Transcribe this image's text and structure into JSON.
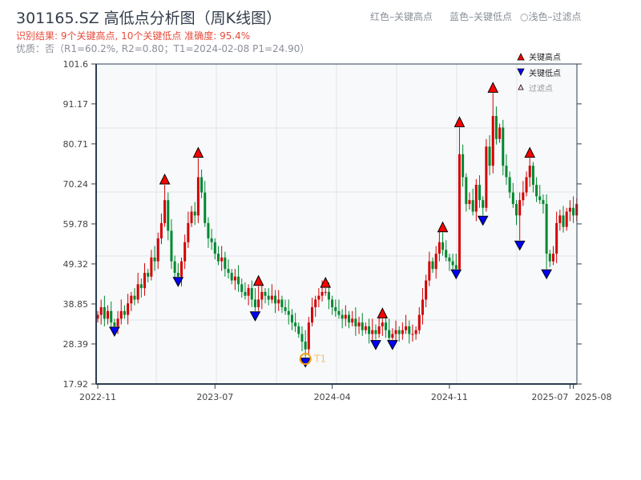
{
  "header": {
    "title": "301165.SZ 高低点分析图（周K线图）",
    "result": "识别结果: 9个关键高点, 10个关键低点  准确度: 95.4%",
    "quality": "优质：否（R1=60.2%, R2=0.80；T1=2024-02-08 P1=24.90）",
    "legend_red": "红色–关键高点",
    "legend_blue": "蓝色–关键低点",
    "legend_filtered": "○浅色–过滤点"
  },
  "colors": {
    "up": "#d40000",
    "down": "#00882f",
    "high_marker": "#ff0000",
    "low_marker": "#0000ff",
    "t1": "#f39c12",
    "axis": "#2c3e50",
    "grid": "#e1e4ea",
    "bg": "#f7f9fb"
  },
  "chart_data": {
    "type": "candlestick",
    "title": "301165.SZ 高低点分析图（周K线图）",
    "ylim": [
      17.92,
      101.6
    ],
    "yticks": [
      "17.92",
      "28.39",
      "38.85",
      "49.32",
      "59.78",
      "70.24",
      "80.71",
      "91.17",
      "101.6"
    ],
    "xticks": [
      {
        "label": "2022-11",
        "index": 0
      },
      {
        "label": "2023-07",
        "index": 35
      },
      {
        "label": "2024-04",
        "index": 70
      },
      {
        "label": "2024-11",
        "index": 105
      },
      {
        "label": "2025-07",
        "index": 141
      },
      {
        "label": "2025-08",
        "index": 142
      }
    ],
    "first_open": 35,
    "closes": [
      36,
      38,
      35,
      37,
      34,
      33,
      35,
      37,
      36,
      39,
      41,
      40,
      44,
      43,
      47,
      46,
      51,
      50,
      56,
      60,
      66,
      58,
      50,
      47,
      46,
      50,
      55,
      60,
      63,
      62,
      72,
      68,
      60,
      56,
      55,
      52,
      50,
      51,
      48,
      47,
      45,
      46,
      44,
      42,
      41,
      43,
      40,
      38,
      40,
      42,
      41,
      40,
      41,
      39,
      40,
      38,
      37,
      36,
      34,
      33,
      31,
      29,
      27,
      34,
      38,
      40,
      41,
      42,
      42,
      40,
      38,
      37,
      36,
      35,
      36,
      34,
      35,
      33,
      34,
      32,
      33,
      31,
      32,
      31,
      33,
      34,
      32,
      30,
      31,
      32,
      31,
      32,
      33,
      31,
      31,
      32,
      36,
      40,
      45,
      50,
      48,
      52,
      55,
      53,
      51,
      50,
      49,
      48,
      78,
      72,
      65,
      66,
      63,
      70,
      66,
      64,
      80,
      75,
      88,
      82,
      85,
      75,
      72,
      68,
      65,
      62,
      66,
      68,
      72,
      75,
      70,
      67,
      66,
      65,
      52,
      50,
      52,
      60,
      62,
      59,
      63,
      64,
      62,
      65
    ],
    "key_highs": [
      {
        "index": 20,
        "price": 70
      },
      {
        "index": 30,
        "price": 77
      },
      {
        "index": 48,
        "price": 43.5
      },
      {
        "index": 68,
        "price": 43
      },
      {
        "index": 85,
        "price": 35
      },
      {
        "index": 103,
        "price": 57.5
      },
      {
        "index": 108,
        "price": 85
      },
      {
        "index": 118,
        "price": 94
      },
      {
        "index": 129,
        "price": 77
      }
    ],
    "key_lows": [
      {
        "index": 5,
        "price": 33
      },
      {
        "index": 24,
        "price": 46
      },
      {
        "index": 47,
        "price": 37
      },
      {
        "index": 62,
        "price": 24.9
      },
      {
        "index": 83,
        "price": 29.5
      },
      {
        "index": 88,
        "price": 29.5
      },
      {
        "index": 107,
        "price": 48
      },
      {
        "index": 115,
        "price": 62
      },
      {
        "index": 126,
        "price": 55.5
      },
      {
        "index": 134,
        "price": 48
      }
    ],
    "t1": {
      "index": 62,
      "price": 24.9,
      "label": "T1"
    },
    "legend": {
      "high": "关键高点",
      "low": "关键低点",
      "filtered": "过滤点",
      "placement": "top-right"
    }
  }
}
